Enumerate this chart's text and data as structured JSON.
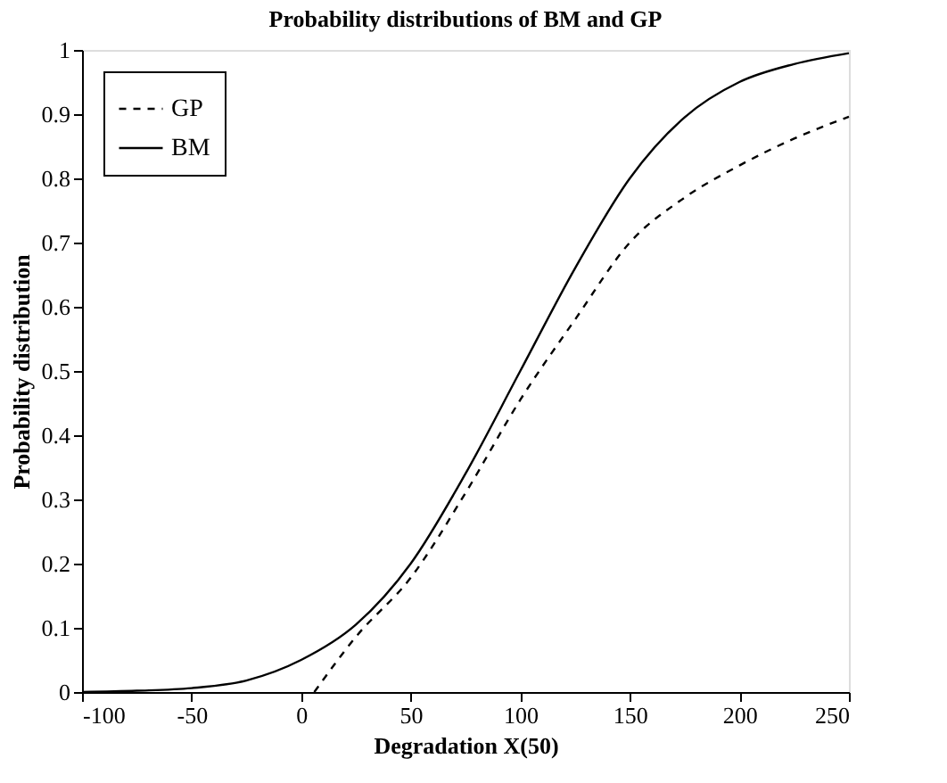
{
  "chart_data": {
    "type": "line",
    "title": "Probability distributions of BM and GP",
    "xlabel": "Degradation X(50)",
    "ylabel": "Probability distribution",
    "xlim": [
      -100,
      250
    ],
    "xticks": [
      -100,
      -50,
      0,
      50,
      100,
      150,
      200,
      250
    ],
    "ylim": [
      0,
      1
    ],
    "yticks": [
      0,
      0.1,
      0.2,
      0.3,
      0.4,
      0.5,
      0.6,
      0.7,
      0.8,
      0.9,
      1
    ],
    "grid": false,
    "legend": "top left",
    "marker": "none",
    "series": [
      {
        "name": "GP",
        "color": "#000000",
        "line_style": "dashed",
        "x": [
          6,
          25,
          50,
          75,
          100,
          125,
          150,
          175,
          200,
          225,
          250
        ],
        "values": [
          0,
          0.086,
          0.178,
          0.31,
          0.455,
          0.58,
          0.7,
          0.77,
          0.82,
          0.862,
          0.896
        ]
      },
      {
        "name": "BM",
        "color": "#000000",
        "line_style": "solid",
        "x": [
          -100,
          -75,
          -50,
          -25,
          0,
          25,
          50,
          75,
          100,
          125,
          150,
          175,
          200,
          225,
          250
        ],
        "values": [
          0,
          0.002,
          0.006,
          0.018,
          0.05,
          0.105,
          0.2,
          0.34,
          0.5,
          0.66,
          0.8,
          0.895,
          0.95,
          0.978,
          0.995
        ]
      }
    ]
  }
}
